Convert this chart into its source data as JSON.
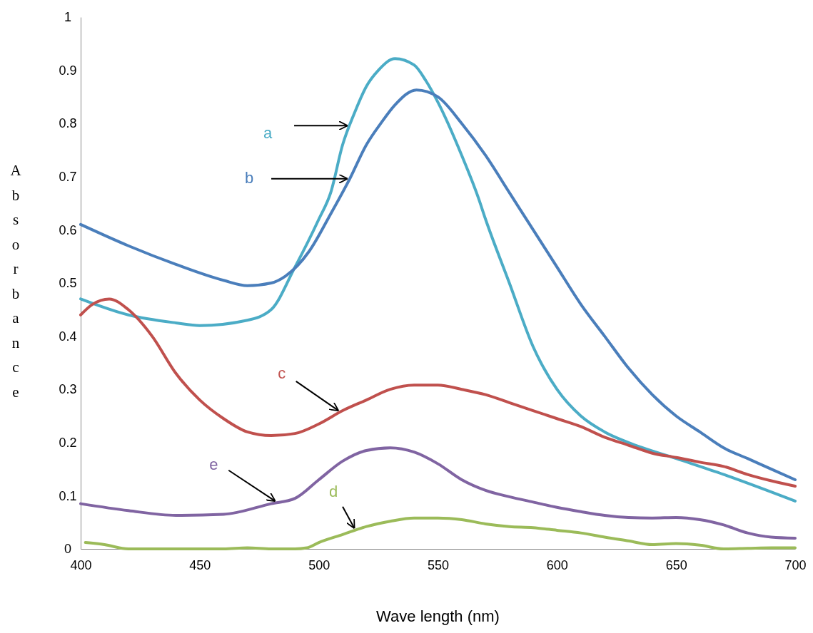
{
  "chart_data": {
    "type": "line",
    "xlabel": "Wave length (nm)",
    "ylabel": "Absorbance",
    "xlim": [
      400,
      700
    ],
    "ylim": [
      0,
      1
    ],
    "xticks": [
      400,
      450,
      500,
      550,
      600,
      650,
      700
    ],
    "yticks": [
      0,
      0.1,
      0.2,
      0.3,
      0.4,
      0.5,
      0.6,
      0.7,
      0.8,
      0.9,
      1
    ],
    "grid": false,
    "legend": false,
    "marker": "none",
    "line_style": "solid",
    "series": [
      {
        "name": "a",
        "color": "#4bacc6",
        "x": [
          400,
          420,
          440,
          450,
          470,
          480,
          490,
          500,
          505,
          510,
          515,
          520,
          525,
          532,
          540,
          545,
          550,
          560,
          567,
          570,
          580,
          590,
          600,
          610,
          620,
          630,
          650,
          670,
          700
        ],
        "values": [
          0.47,
          0.44,
          0.425,
          0.42,
          0.43,
          0.45,
          0.53,
          0.62,
          0.67,
          0.76,
          0.82,
          0.87,
          0.9,
          0.922,
          0.91,
          0.88,
          0.84,
          0.74,
          0.66,
          0.62,
          0.5,
          0.38,
          0.3,
          0.25,
          0.22,
          0.2,
          0.17,
          0.14,
          0.09
        ]
      },
      {
        "name": "b",
        "color": "#4a7ebb",
        "x": [
          400,
          420,
          440,
          460,
          470,
          480,
          486,
          496,
          505,
          513,
          520,
          526,
          532,
          541,
          550,
          560,
          570,
          580,
          590,
          600,
          610,
          620,
          630,
          640,
          650,
          660,
          670,
          680,
          690,
          700
        ],
        "values": [
          0.61,
          0.57,
          0.535,
          0.505,
          0.495,
          0.5,
          0.513,
          0.56,
          0.63,
          0.696,
          0.76,
          0.8,
          0.835,
          0.863,
          0.85,
          0.8,
          0.74,
          0.67,
          0.6,
          0.53,
          0.46,
          0.4,
          0.34,
          0.29,
          0.25,
          0.22,
          0.19,
          0.17,
          0.15,
          0.13
        ]
      },
      {
        "name": "c",
        "color": "#c0504d",
        "x": [
          400,
          405,
          412,
          420,
          430,
          440,
          450,
          460,
          470,
          480,
          490,
          500,
          510,
          520,
          530,
          540,
          550,
          560,
          570,
          580,
          590,
          600,
          610,
          620,
          630,
          640,
          650,
          660,
          670,
          680,
          690,
          700
        ],
        "values": [
          0.44,
          0.46,
          0.47,
          0.45,
          0.4,
          0.33,
          0.28,
          0.245,
          0.22,
          0.213,
          0.217,
          0.235,
          0.26,
          0.28,
          0.3,
          0.308,
          0.308,
          0.3,
          0.29,
          0.275,
          0.26,
          0.245,
          0.23,
          0.21,
          0.195,
          0.18,
          0.172,
          0.163,
          0.155,
          0.14,
          0.128,
          0.118
        ]
      },
      {
        "name": "d",
        "color": "#9bbb59",
        "x": [
          402,
          410,
          420,
          440,
          460,
          470,
          480,
          490,
          495,
          500,
          510,
          520,
          530,
          540,
          550,
          560,
          570,
          580,
          590,
          600,
          610,
          620,
          630,
          640,
          650,
          660,
          670,
          680,
          690,
          700
        ],
        "values": [
          0.012,
          0.008,
          0,
          0,
          0,
          0.002,
          0,
          0,
          0.002,
          0.012,
          0.027,
          0.042,
          0.052,
          0.058,
          0.058,
          0.055,
          0.047,
          0.042,
          0.04,
          0.035,
          0.03,
          0.022,
          0.015,
          0.008,
          0.01,
          0.007,
          0,
          0.001,
          0.002,
          0.002
        ]
      },
      {
        "name": "e",
        "color": "#8064a2",
        "x": [
          400,
          420,
          440,
          460,
          480,
          490,
          500,
          510,
          520,
          530,
          540,
          550,
          560,
          570,
          580,
          590,
          600,
          610,
          620,
          630,
          640,
          650,
          660,
          670,
          680,
          690,
          700
        ],
        "values": [
          0.085,
          0.072,
          0.063,
          0.065,
          0.085,
          0.095,
          0.13,
          0.165,
          0.185,
          0.19,
          0.182,
          0.16,
          0.13,
          0.11,
          0.098,
          0.088,
          0.078,
          0.07,
          0.063,
          0.059,
          0.058,
          0.059,
          0.055,
          0.045,
          0.03,
          0.022,
          0.02
        ]
      }
    ]
  }
}
